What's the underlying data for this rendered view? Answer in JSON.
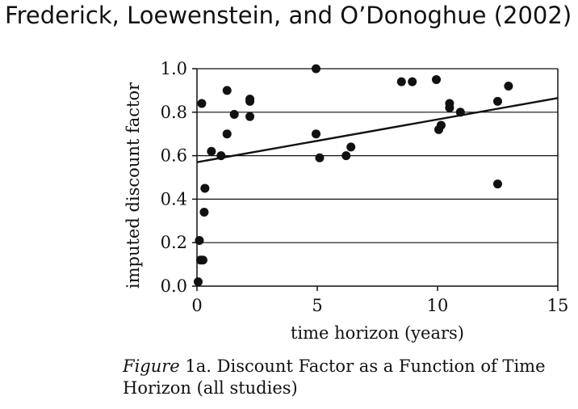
{
  "header": {
    "title": "Frederick, Loewenstein, and O’Donoghue (2002)"
  },
  "caption": {
    "figure_word": "Figure",
    "figure_number": "1a.",
    "text": "Discount Factor as a Function of Time Horizon (all studies)"
  },
  "chart_data": {
    "type": "scatter",
    "title": "",
    "xlabel": "time horizon (years)",
    "ylabel": "imputed discount factor",
    "xlim": [
      0,
      15
    ],
    "ylim": [
      0,
      1.0
    ],
    "x_ticks": [
      0,
      5,
      10,
      15
    ],
    "x_tick_labels": [
      "0",
      "5",
      "10",
      "15"
    ],
    "y_ticks": [
      0,
      0.2,
      0.4,
      0.6,
      0.8,
      1.0
    ],
    "y_tick_labels": [
      "0.0",
      "0.2",
      "0.4",
      "0.6",
      "0.8",
      "1.0"
    ],
    "grid": "horizontal",
    "points": [
      {
        "x": 0.05,
        "y": 0.02
      },
      {
        "x": 0.1,
        "y": 0.21
      },
      {
        "x": 0.15,
        "y": 0.12
      },
      {
        "x": 0.25,
        "y": 0.12
      },
      {
        "x": 0.2,
        "y": 0.84
      },
      {
        "x": 0.3,
        "y": 0.34
      },
      {
        "x": 0.33,
        "y": 0.45
      },
      {
        "x": 0.6,
        "y": 0.62
      },
      {
        "x": 1.0,
        "y": 0.6
      },
      {
        "x": 1.25,
        "y": 0.7
      },
      {
        "x": 1.25,
        "y": 0.9
      },
      {
        "x": 1.55,
        "y": 0.79
      },
      {
        "x": 2.2,
        "y": 0.78
      },
      {
        "x": 2.2,
        "y": 0.85
      },
      {
        "x": 2.2,
        "y": 0.86
      },
      {
        "x": 4.95,
        "y": 0.7
      },
      {
        "x": 4.95,
        "y": 1.0
      },
      {
        "x": 5.1,
        "y": 0.59
      },
      {
        "x": 6.2,
        "y": 0.6
      },
      {
        "x": 6.4,
        "y": 0.64
      },
      {
        "x": 8.5,
        "y": 0.94
      },
      {
        "x": 8.95,
        "y": 0.94
      },
      {
        "x": 9.95,
        "y": 0.95
      },
      {
        "x": 10.05,
        "y": 0.72
      },
      {
        "x": 10.15,
        "y": 0.74
      },
      {
        "x": 10.5,
        "y": 0.82
      },
      {
        "x": 10.5,
        "y": 0.84
      },
      {
        "x": 10.95,
        "y": 0.8
      },
      {
        "x": 12.5,
        "y": 0.47
      },
      {
        "x": 12.5,
        "y": 0.85
      },
      {
        "x": 12.95,
        "y": 0.92
      }
    ],
    "trendline": {
      "x": [
        0,
        15
      ],
      "y": [
        0.57,
        0.865
      ]
    },
    "colors": {
      "points": "#111111",
      "grid": "#111111",
      "axis": "#111111"
    }
  }
}
